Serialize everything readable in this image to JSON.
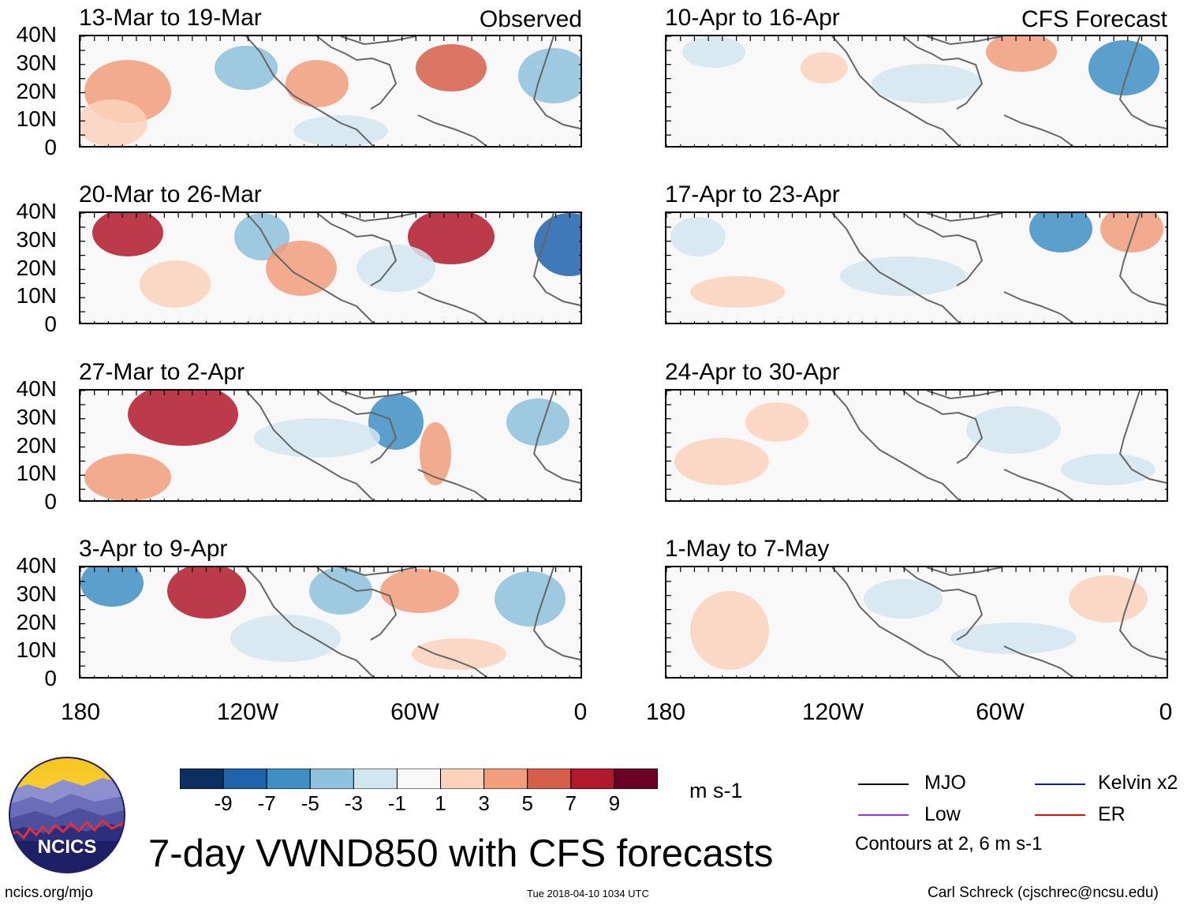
{
  "figure": {
    "main_title": "7-day VWND850 with CFS forecasts",
    "left_header": "Observed",
    "right_header": "CFS Forecast",
    "units": "m s-1",
    "contours_note": "Contours at 2, 6 m s-1",
    "footer_left": "ncics.org/mjo",
    "footer_center": "Tue 2018-04-10 1034 UTC",
    "footer_right": "Carl Schreck (cjschrec@ncsu.edu)",
    "logo_text": "NCICS"
  },
  "chart_data": {
    "type": "heatmap",
    "variable": "850-hPa meridional wind anomaly (7-day mean)",
    "xlabel": "",
    "ylabel": "",
    "x_ticks": [
      "180",
      "120W",
      "60W",
      "0"
    ],
    "y_ticks": [
      "40N",
      "30N",
      "20N",
      "10N",
      "0"
    ],
    "xlim": [
      -180,
      0
    ],
    "ylim": [
      0,
      40
    ],
    "colorbar": {
      "tick_labels": [
        "-9",
        "-7",
        "-5",
        "-3",
        "-1",
        "1",
        "3",
        "5",
        "7",
        "9"
      ],
      "colors": [
        "#0b2f5f",
        "#1f63ad",
        "#3f8fc4",
        "#8dc1dd",
        "#d2e6f0",
        "#f8f8f8",
        "#fbd2bc",
        "#f19e7c",
        "#d65f4b",
        "#b01a2c",
        "#6a0023"
      ]
    },
    "legend": [
      {
        "label": "MJO",
        "color": "#000000"
      },
      {
        "label": "Kelvin x2",
        "color": "#0a18c8"
      },
      {
        "label": "Low",
        "color": "#a033e0"
      },
      {
        "label": "ER",
        "color": "#e01010"
      }
    ],
    "panels": [
      {
        "title": "13-Mar to 19-Mar",
        "source": "Observed"
      },
      {
        "title": "20-Mar to 26-Mar",
        "source": "Observed"
      },
      {
        "title": "27-Mar to 2-Apr",
        "source": "Observed"
      },
      {
        "title": "3-Apr to 9-Apr",
        "source": "Observed"
      },
      {
        "title": "10-Apr to 16-Apr",
        "source": "CFS Forecast"
      },
      {
        "title": "17-Apr to 23-Apr",
        "source": "CFS Forecast"
      },
      {
        "title": "24-Apr to 30-Apr",
        "source": "CFS Forecast"
      },
      {
        "title": "1-May to 7-May",
        "source": "CFS Forecast"
      }
    ]
  }
}
